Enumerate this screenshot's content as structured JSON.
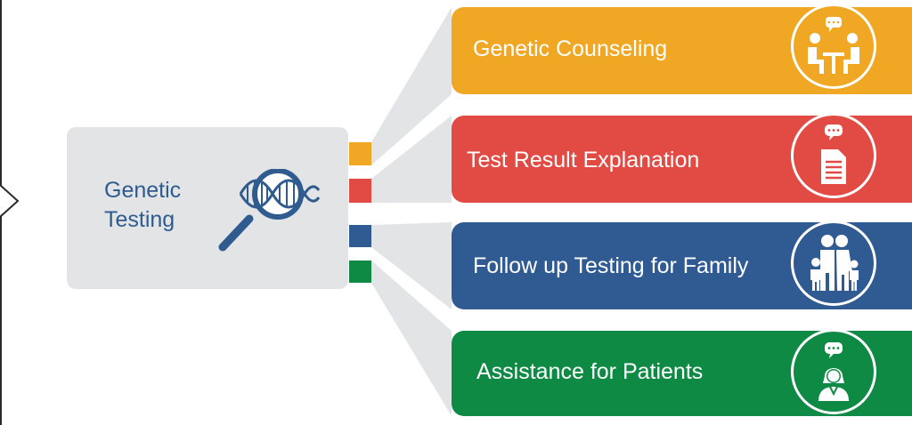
{
  "hub": {
    "title_line1": "Genetic",
    "title_line2": "Testing",
    "icon": "dna-magnifier-icon"
  },
  "services": [
    {
      "label": "Genetic Counseling",
      "icon": "counseling-meeting-icon",
      "color": "#f0a824"
    },
    {
      "label": "Test Result  Explanation",
      "icon": "document-chat-icon",
      "color": "#e24b44"
    },
    {
      "label": "Follow up Testing for Family",
      "icon": "family-icon",
      "color": "#2f5b92"
    },
    {
      "label": "Assistance for Patients",
      "icon": "patient-support-icon",
      "color": "#0e8a44"
    }
  ],
  "colors": {
    "hub_background": "#e3e4e6",
    "hub_text": "#2f5b8f",
    "connector": "#e3e4e6"
  }
}
